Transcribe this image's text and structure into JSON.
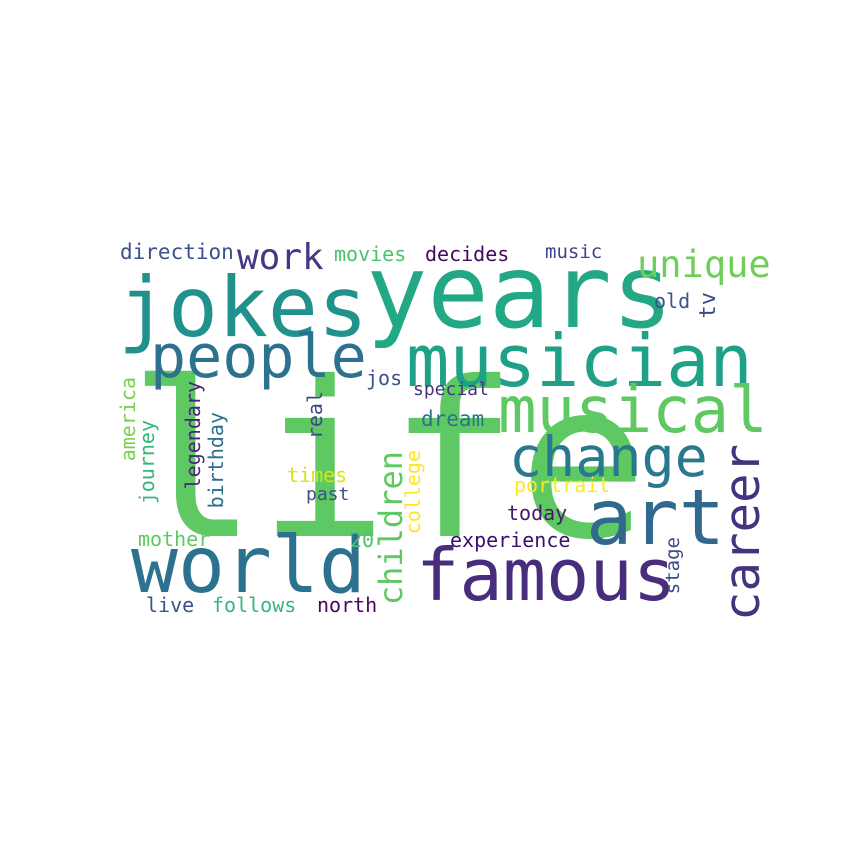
{
  "words": [
    {
      "text": "life",
      "color": "#5ec962"
    },
    {
      "text": "years",
      "color": "#22a884"
    },
    {
      "text": "jokes",
      "color": "#21918c"
    },
    {
      "text": "musician",
      "color": "#1fa187"
    },
    {
      "text": "art",
      "color": "#31688e"
    },
    {
      "text": "famous",
      "color": "#472d7b"
    },
    {
      "text": "world",
      "color": "#2c728e"
    },
    {
      "text": "people",
      "color": "#2c728e"
    },
    {
      "text": "musical",
      "color": "#5ec962"
    },
    {
      "text": "change",
      "color": "#2a788e"
    },
    {
      "text": "career",
      "color": "#46337e"
    },
    {
      "text": "children",
      "color": "#5ec962"
    },
    {
      "text": "unique",
      "color": "#6ece58"
    },
    {
      "text": "work",
      "color": "#443a83"
    },
    {
      "text": "direction",
      "color": "#3b528b"
    },
    {
      "text": "movies",
      "color": "#4ac16d"
    },
    {
      "text": "decides",
      "color": "#46085c"
    },
    {
      "text": "music",
      "color": "#414487"
    },
    {
      "text": "old",
      "color": "#3b528b"
    },
    {
      "text": "tv",
      "color": "#3e4989"
    },
    {
      "text": "jos",
      "color": "#3b528b"
    },
    {
      "text": "special",
      "color": "#46337e"
    },
    {
      "text": "dream",
      "color": "#2c728e"
    },
    {
      "text": "real",
      "color": "#3e4a89"
    },
    {
      "text": "times",
      "color": "#d8e219"
    },
    {
      "text": "past",
      "color": "#3b528b"
    },
    {
      "text": "portrait",
      "color": "#fde725"
    },
    {
      "text": "today",
      "color": "#48186a"
    },
    {
      "text": "experience",
      "color": "#3b0f70"
    },
    {
      "text": "college",
      "color": "#fde725"
    },
    {
      "text": "20",
      "color": "#4ac16d"
    },
    {
      "text": "stage",
      "color": "#3e4989"
    },
    {
      "text": "america",
      "color": "#7ad151"
    },
    {
      "text": "journey",
      "color": "#35b779"
    },
    {
      "text": "legendary",
      "color": "#482878"
    },
    {
      "text": "birthday",
      "color": "#2d708e"
    },
    {
      "text": "mother",
      "color": "#5ec962"
    },
    {
      "text": "live",
      "color": "#3b528b"
    },
    {
      "text": "follows",
      "color": "#35b779"
    },
    {
      "text": "north",
      "color": "#46085c"
    }
  ]
}
